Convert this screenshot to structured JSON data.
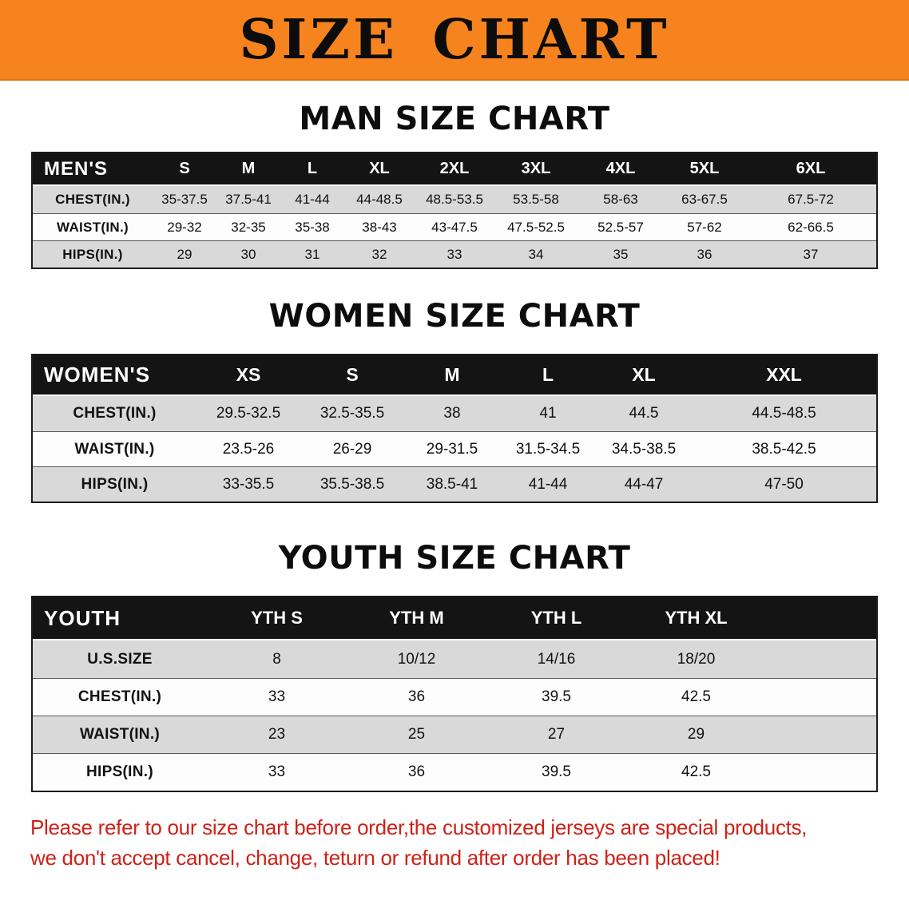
{
  "banner": {
    "title": "SIZE CHART"
  },
  "sections": [
    {
      "heading": "MAN SIZE CHART",
      "table": {
        "label": "MEN'S",
        "sizes": [
          "S",
          "M",
          "L",
          "XL",
          "2XL",
          "3XL",
          "4XL",
          "5XL",
          "6XL"
        ],
        "rows": [
          {
            "label": "CHEST(IN.)",
            "values": [
              "35-37.5",
              "37.5-41",
              "41-44",
              "44-48.5",
              "48.5-53.5",
              "53.5-58",
              "58-63",
              "63-67.5",
              "67.5-72"
            ]
          },
          {
            "label": "WAIST(IN.)",
            "values": [
              "29-32",
              "32-35",
              "35-38",
              "38-43",
              "43-47.5",
              "47.5-52.5",
              "52.5-57",
              "57-62",
              "62-66.5"
            ]
          },
          {
            "label": "HIPS(IN.)",
            "values": [
              "29",
              "30",
              "31",
              "32",
              "33",
              "34",
              "35",
              "36",
              "37"
            ]
          }
        ]
      }
    },
    {
      "heading": "WOMEN SIZE CHART",
      "table": {
        "label": "WOMEN'S",
        "sizes": [
          "XS",
          "S",
          "M",
          "L",
          "XL",
          "XXL"
        ],
        "rows": [
          {
            "label": "CHEST(IN.)",
            "values": [
              "29.5-32.5",
              "32.5-35.5",
              "38",
              "41",
              "44.5",
              "44.5-48.5"
            ]
          },
          {
            "label": "WAIST(IN.)",
            "values": [
              "23.5-26",
              "26-29",
              "29-31.5",
              "31.5-34.5",
              "34.5-38.5",
              "38.5-42.5"
            ]
          },
          {
            "label": "HIPS(IN.)",
            "values": [
              "33-35.5",
              "35.5-38.5",
              "38.5-41",
              "41-44",
              "44-47",
              "47-50"
            ]
          }
        ]
      }
    },
    {
      "heading": "YOUTH SIZE CHART",
      "table": {
        "label": "YOUTH",
        "sizes": [
          "YTH S",
          "YTH M",
          "YTH L",
          "YTH XL"
        ],
        "rows": [
          {
            "label": "U.S.SIZE",
            "values": [
              "8",
              "10/12",
              "14/16",
              "18/20"
            ]
          },
          {
            "label": "CHEST(IN.)",
            "values": [
              "33",
              "36",
              "39.5",
              "42.5"
            ]
          },
          {
            "label": "WAIST(IN.)",
            "values": [
              "23",
              "25",
              "27",
              "29"
            ]
          },
          {
            "label": "HIPS(IN.)",
            "values": [
              "33",
              "36",
              "39.5",
              "42.5"
            ]
          }
        ]
      }
    }
  ],
  "disclaimer": {
    "line1": "Please refer to our size chart before order,the customized jerseys are special products,",
    "line2": "we don't accept cancel, change, teturn or refund after order has been placed!"
  },
  "colors": {
    "banner_orange": "#F6831E",
    "header_black": "#141414",
    "row_gray": "#D9D9D9",
    "disclaimer_red": "#CE2118"
  }
}
